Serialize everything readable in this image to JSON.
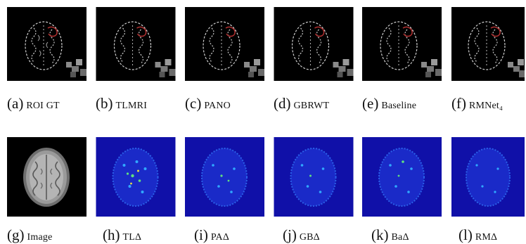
{
  "figure": {
    "row1": [
      {
        "tag": "(a)",
        "name": "ROI GT"
      },
      {
        "tag": "(b)",
        "name": "TLMRI"
      },
      {
        "tag": "(c)",
        "name": "PANO"
      },
      {
        "tag": "(d)",
        "name": "GBRWT"
      },
      {
        "tag": "(e)",
        "name": "Baseline"
      },
      {
        "tag": "(f)",
        "name": "RMNet₄"
      }
    ],
    "row2": [
      {
        "tag": "(g)",
        "name": "Image"
      },
      {
        "tag": "(h)",
        "name": "TLΔ"
      },
      {
        "tag": "(i)",
        "name": "PAΔ"
      },
      {
        "tag": "(j)",
        "name": "GBΔ"
      },
      {
        "tag": "(k)",
        "name": "BaΔ"
      },
      {
        "tag": "(l)",
        "name": "RMΔ"
      }
    ]
  },
  "colors": {
    "error_map_bg": "#1010a8",
    "roi_highlight": "#b03030",
    "edge_gray": "#cfcfcf"
  }
}
